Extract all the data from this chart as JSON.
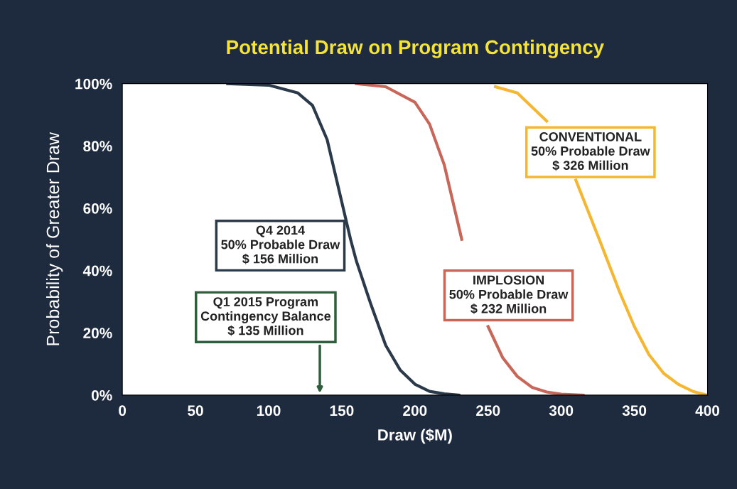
{
  "chart_data": {
    "type": "line",
    "title": "Potential Draw on Program Contingency",
    "xlabel": "Draw ($M)",
    "ylabel": "Probability of Greater Draw",
    "series": [
      {
        "color": "#2b3a4a",
        "x": [
          72,
          100,
          120,
          130,
          140,
          150,
          156,
          160,
          170,
          180,
          190,
          200,
          210,
          220,
          230
        ],
        "values": [
          100,
          99.5,
          97,
          93,
          82,
          62,
          50,
          43,
          29,
          16,
          8,
          3.5,
          1.2,
          0.4,
          0
        ]
      },
      {
        "color": "#c8665a",
        "x": [
          160,
          180,
          200,
          210,
          220,
          232,
          240,
          250,
          260,
          270,
          280,
          290,
          300,
          315
        ],
        "values": [
          100,
          99,
          94,
          87,
          74,
          50,
          null,
          22,
          12,
          6,
          2.5,
          1,
          0.3,
          0
        ]
      },
      {
        "color": "#f5b731",
        "x": [
          255,
          270,
          290,
          300,
          310,
          326,
          340,
          350,
          360,
          370,
          380,
          390,
          400
        ],
        "values": [
          99,
          97,
          88,
          null,
          69,
          50,
          33,
          22,
          13,
          7,
          3.5,
          1.2,
          0
        ]
      }
    ],
    "xlim": [
      0,
      400
    ],
    "ylim": [
      0,
      100
    ],
    "xticks": [
      0,
      50,
      100,
      150,
      200,
      250,
      300,
      350,
      400
    ],
    "yticks": [
      {
        "value": 0,
        "label": "0%"
      },
      {
        "value": 20,
        "label": "20%"
      },
      {
        "value": 40,
        "label": "40%"
      },
      {
        "value": 60,
        "label": "60%"
      },
      {
        "value": 80,
        "label": "80%"
      },
      {
        "value": 100,
        "label": "100%"
      }
    ],
    "annotations": [
      "Q4 2014\n50% Probable Draw\n$ 156 Million",
      "Q1 2015 Program\nContingency Balance\n$ 135 Million",
      "IMPLOSION\n50% Probable Draw\n$ 232 Million",
      "CONVENTIONAL\n50% Probable Draw\n$ 326 Million"
    ],
    "grid": false,
    "legend": false,
    "marker": "none",
    "line_style": "solid"
  }
}
